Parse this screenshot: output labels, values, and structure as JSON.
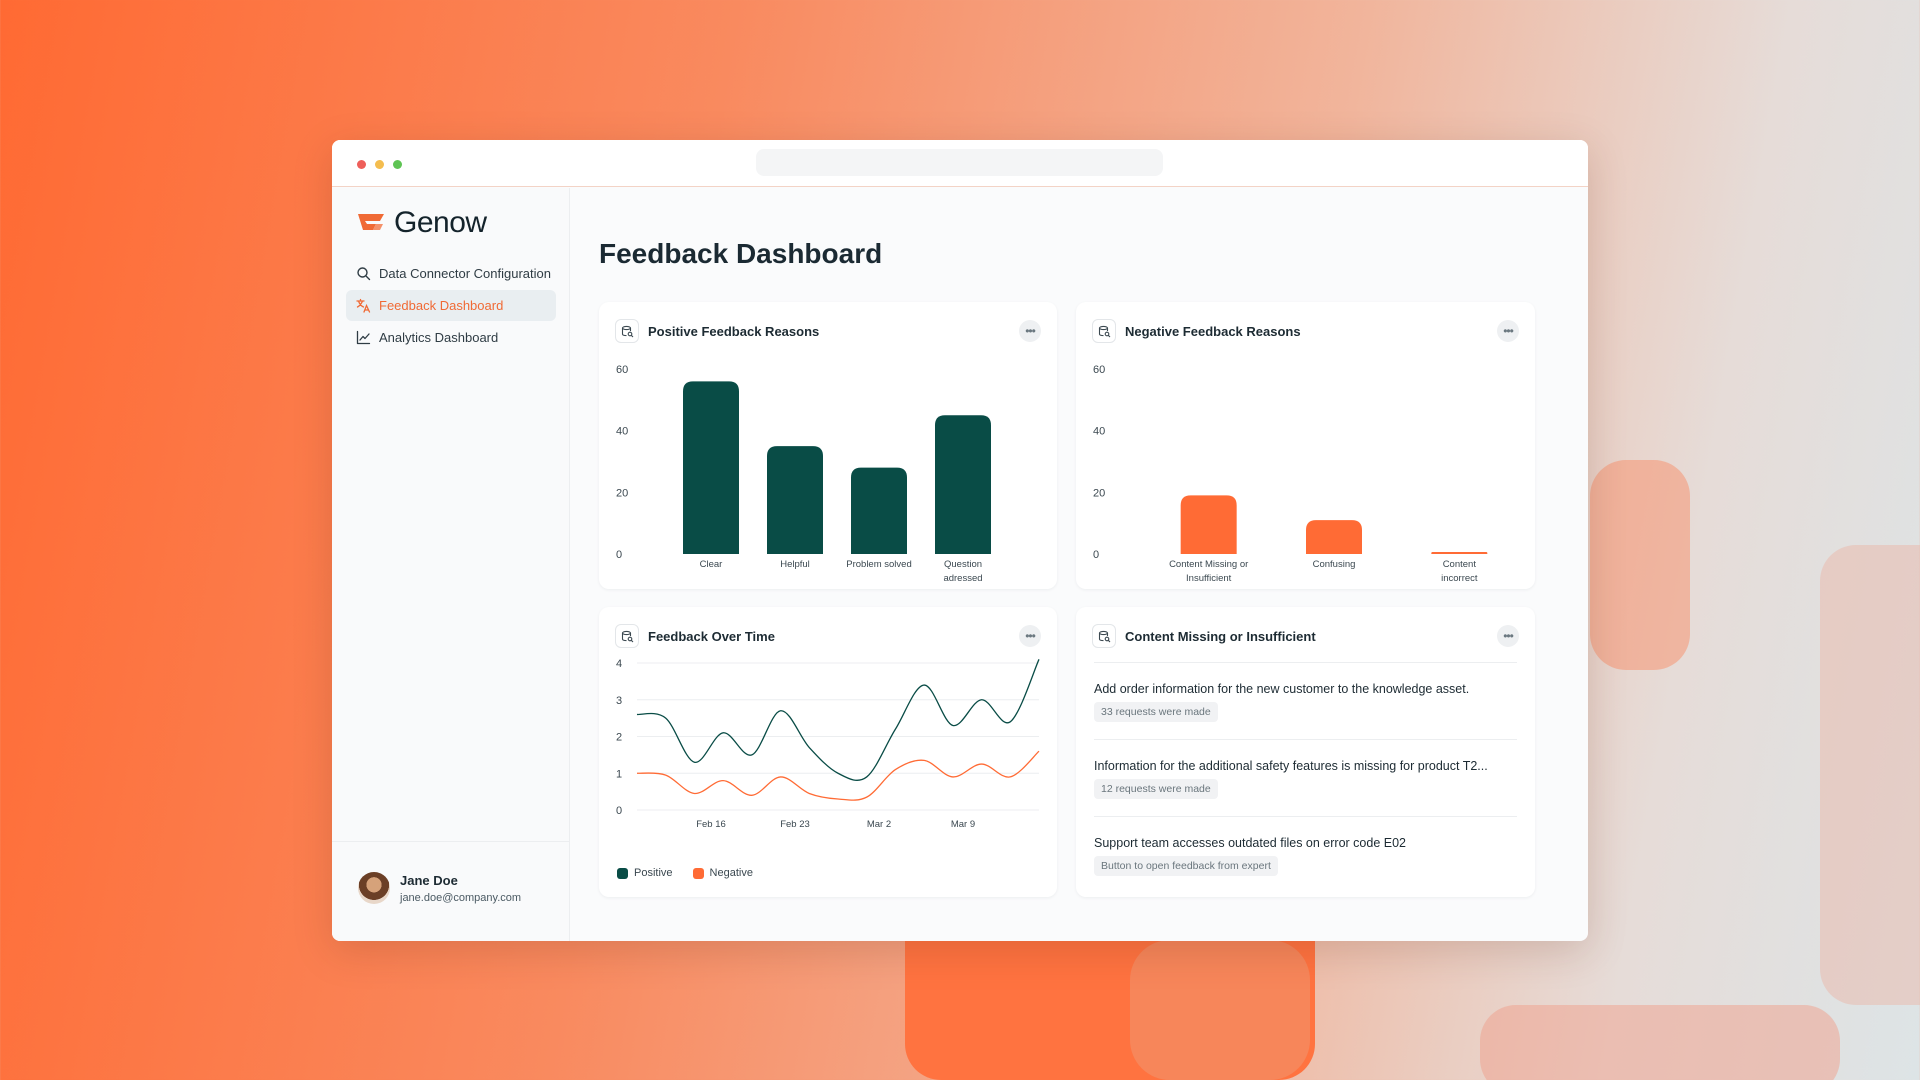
{
  "brand": {
    "name": "Genow",
    "accent": "#f06a35",
    "primary": "#094c46"
  },
  "sidebar": {
    "items": [
      {
        "label": "Data Connector Configuration",
        "icon": "search-icon",
        "active": false
      },
      {
        "label": "Feedback Dashboard",
        "icon": "translate-icon",
        "active": true
      },
      {
        "label": "Analytics Dashboard",
        "icon": "line-chart-icon",
        "active": false
      }
    ],
    "user": {
      "name": "Jane Doe",
      "email": "jane.doe@company.com"
    }
  },
  "main": {
    "title": "Feedback Dashboard"
  },
  "cards": {
    "positive": {
      "title": "Positive Feedback Reasons"
    },
    "negative": {
      "title": "Negative Feedback Reasons"
    },
    "over_time": {
      "title": "Feedback Over Time"
    },
    "content_missing": {
      "title": "Content Missing or Insufficient",
      "items": [
        {
          "text": "Add order information for the new customer to the knowledge asset.",
          "badge": "33 requests were made"
        },
        {
          "text": "Information for the additional safety features is missing for product T2...",
          "badge": "12 requests were made"
        },
        {
          "text": "Support team accesses outdated files on error code E02",
          "badge": "Button to open feedback from expert"
        }
      ]
    }
  },
  "chart_data": [
    {
      "type": "bar",
      "categories": [
        [
          "Clear"
        ],
        [
          "Helpful"
        ],
        [
          "Problem solved"
        ],
        [
          "Question",
          "adressed"
        ]
      ],
      "values": [
        56,
        35,
        28,
        45
      ],
      "yticks": [
        0,
        20,
        40,
        60
      ],
      "ylim": [
        0,
        60
      ],
      "color": "#094c46",
      "grid": false
    },
    {
      "type": "bar",
      "categories": [
        [
          "Content Missing or",
          "Insufficient"
        ],
        [
          "Confusing"
        ],
        [
          "Content",
          "incorrect"
        ]
      ],
      "values": [
        19,
        11,
        0.5
      ],
      "yticks": [
        0,
        20,
        40,
        60
      ],
      "ylim": [
        0,
        60
      ],
      "color": "#ff6b35",
      "grid": false
    },
    {
      "type": "line",
      "x_labels": [
        "Feb 16",
        "Feb 23",
        "Mar 2",
        "Mar 9"
      ],
      "yticks": [
        0,
        1,
        2,
        3,
        4
      ],
      "ylim": [
        0,
        4
      ],
      "grid": true,
      "legend": "bottom-left",
      "series": [
        {
          "name": "Positive",
          "color": "#094c46",
          "values": [
            2.6,
            2.5,
            1.3,
            2.1,
            1.5,
            2.7,
            1.7,
            1.0,
            0.9,
            2.2,
            3.4,
            2.3,
            3.0,
            2.4,
            4.1
          ]
        },
        {
          "name": "Negative",
          "color": "#ff6b35",
          "values": [
            1.0,
            0.95,
            0.45,
            0.8,
            0.4,
            0.9,
            0.45,
            0.3,
            0.35,
            1.1,
            1.35,
            0.9,
            1.25,
            0.9,
            1.6
          ]
        }
      ]
    }
  ]
}
